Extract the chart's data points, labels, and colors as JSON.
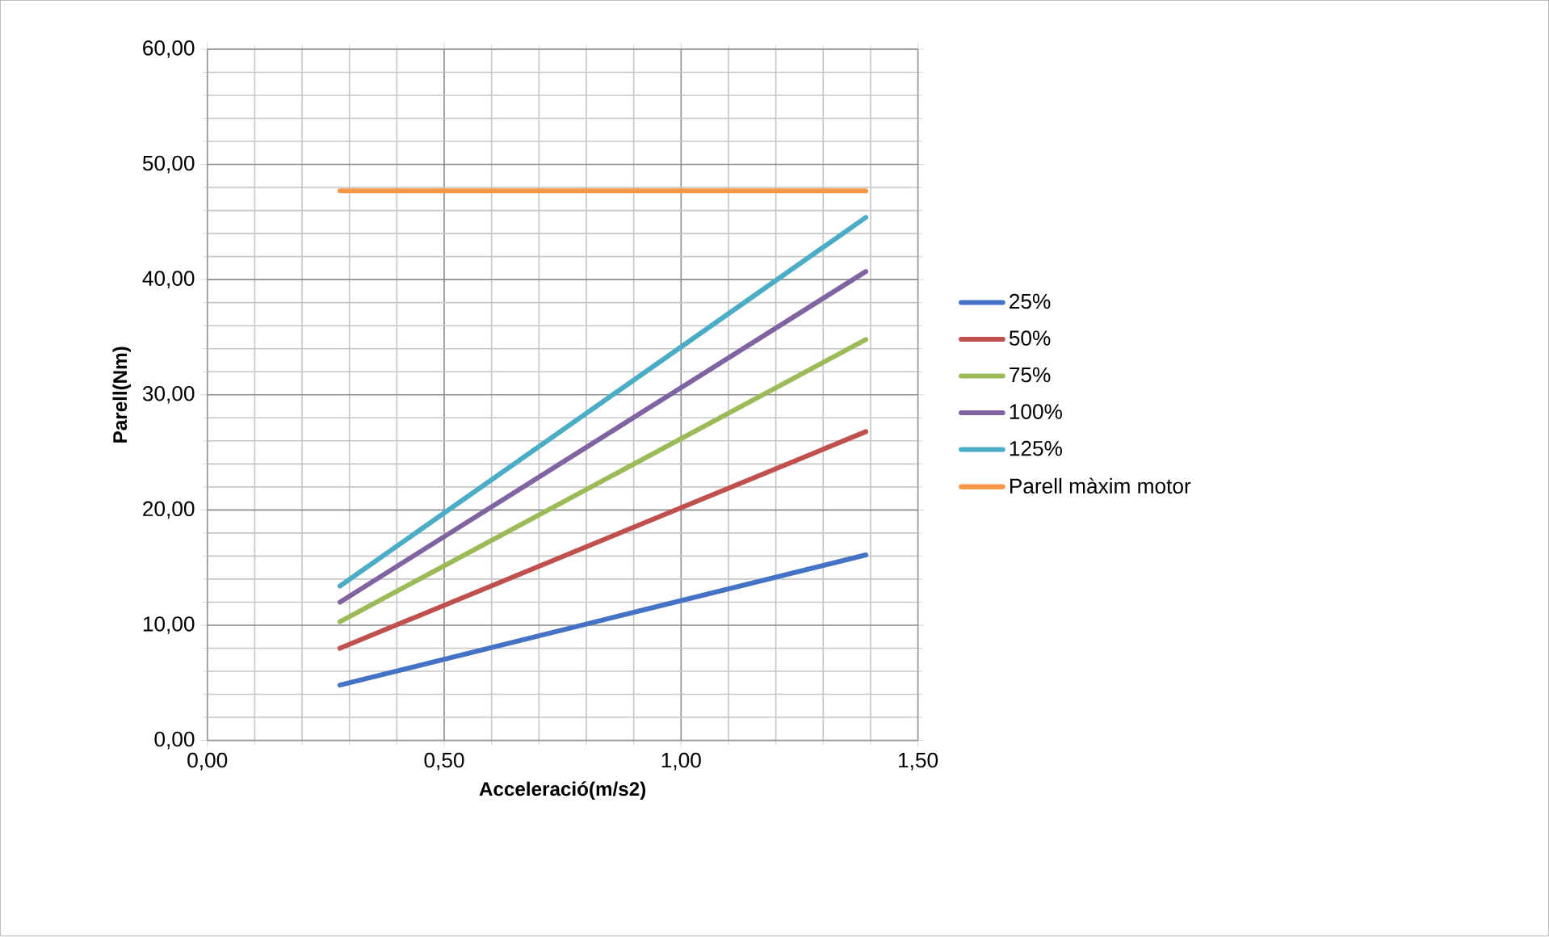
{
  "chart_data": {
    "type": "line",
    "xlabel": "Acceleració(m/s2)",
    "ylabel": "Parell(Nm)",
    "xlim": [
      0,
      1.5
    ],
    "ylim": [
      0,
      60
    ],
    "xticks": [
      {
        "value": 0,
        "label": "0,00"
      },
      {
        "value": 0.5,
        "label": "0,50"
      },
      {
        "value": 1,
        "label": "1,00"
      },
      {
        "value": 1.5,
        "label": "1,50"
      }
    ],
    "yticks": [
      {
        "value": 0,
        "label": "0,00"
      },
      {
        "value": 10,
        "label": "10,00"
      },
      {
        "value": 20,
        "label": "20,00"
      },
      {
        "value": 30,
        "label": "30,00"
      },
      {
        "value": 40,
        "label": "40,00"
      },
      {
        "value": 50,
        "label": "50,00"
      },
      {
        "value": 60,
        "label": "60,00"
      }
    ],
    "grid": true,
    "legend": "right",
    "marker": "none",
    "line_style": "solid",
    "x": [
      0.28,
      1.39
    ],
    "series": [
      {
        "name": "25%",
        "color": "#4472c4",
        "values": [
          4.8,
          16.1
        ]
      },
      {
        "name": "50%",
        "color": "#c0504d",
        "values": [
          8.0,
          26.8
        ]
      },
      {
        "name": "75%",
        "color": "#9bbb59",
        "values": [
          10.3,
          34.8
        ]
      },
      {
        "name": "100%",
        "color": "#8064a2",
        "values": [
          12.0,
          40.7
        ]
      },
      {
        "name": "125%",
        "color": "#4bacc6",
        "values": [
          13.4,
          45.4
        ]
      },
      {
        "name": "Parell màxim motor",
        "color": "#f79646",
        "values": [
          47.7,
          47.7
        ]
      }
    ]
  }
}
